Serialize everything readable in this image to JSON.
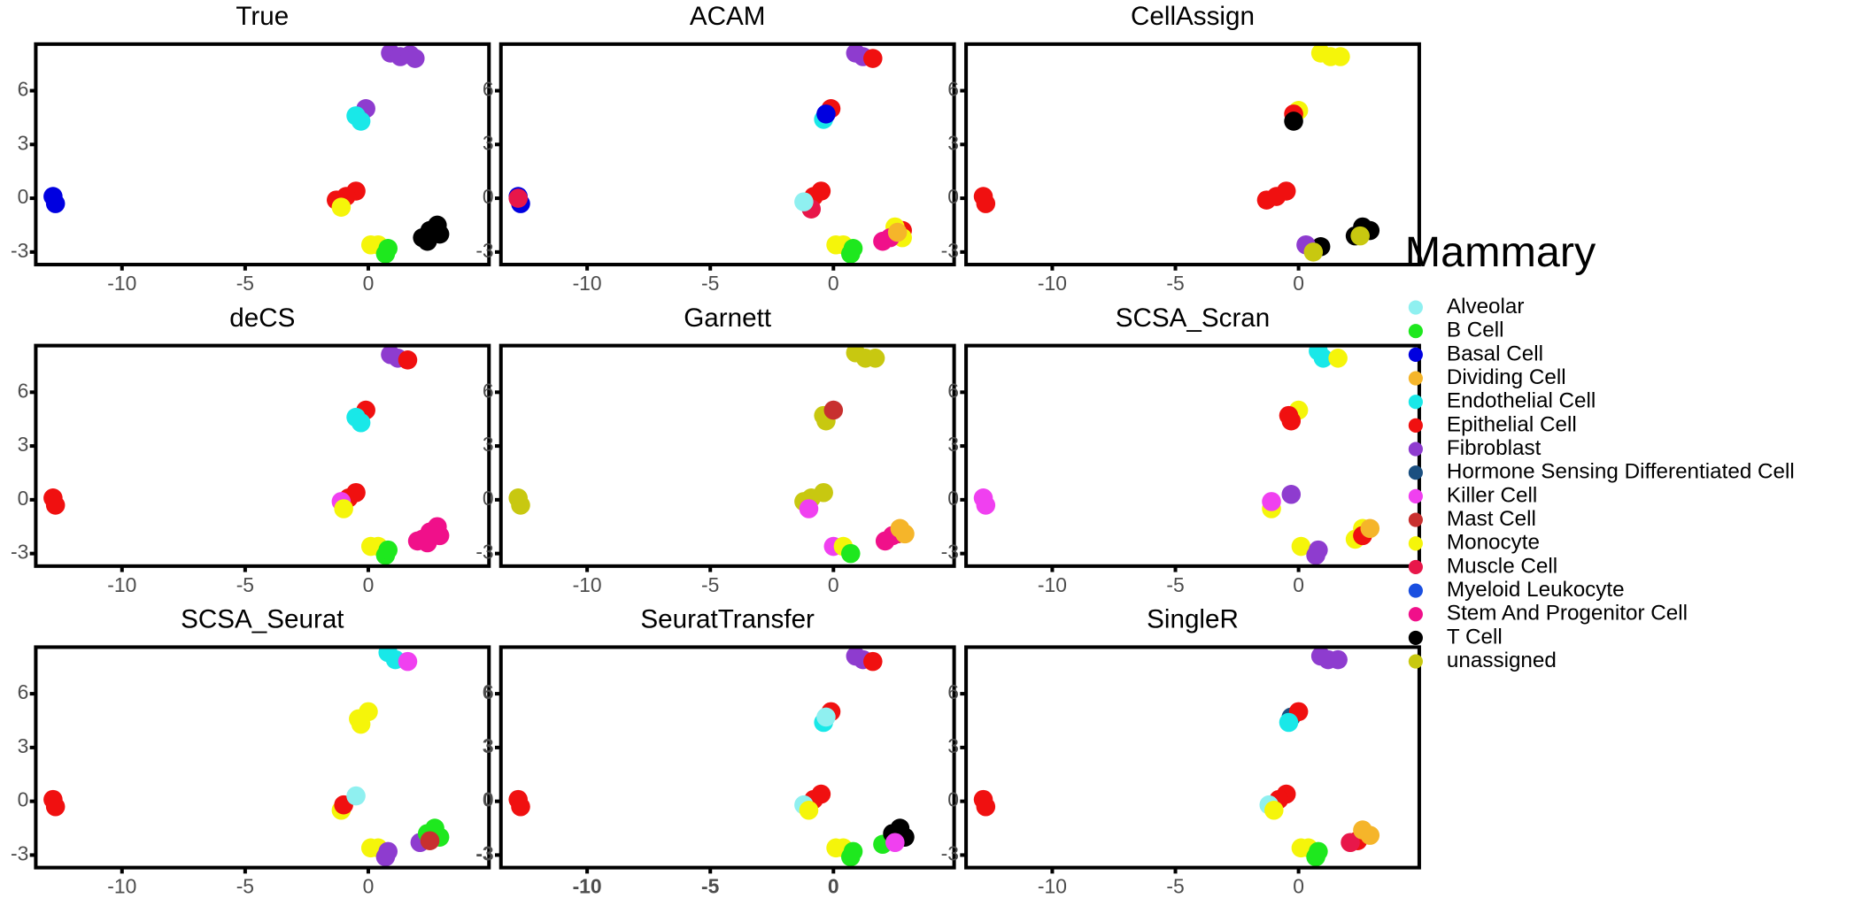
{
  "chart_data": [
    {
      "type": "scatter",
      "title": "True",
      "xlim": [
        -13.5,
        4.9
      ],
      "ylim": [
        -3.7,
        8.6
      ],
      "xticks": [
        -10,
        -5,
        0
      ],
      "yticks": [
        -3,
        0,
        3,
        6
      ],
      "series": [
        {
          "name": "Fibroblast",
          "x": [
            0.9,
            1.3,
            1.7,
            1.9,
            -0.1
          ],
          "y": [
            8.1,
            7.9,
            8.0,
            7.8,
            5.0
          ]
        },
        {
          "name": "Endothelial Cell",
          "x": [
            -0.5,
            -0.3
          ],
          "y": [
            4.6,
            4.3
          ]
        },
        {
          "name": "Basal Cell",
          "x": [
            -12.8,
            -12.7
          ],
          "y": [
            0.1,
            -0.3
          ]
        },
        {
          "name": "Epithelial Cell",
          "x": [
            -0.5,
            -0.9,
            -1.3
          ],
          "y": [
            0.4,
            0.1,
            -0.1
          ]
        },
        {
          "name": "Monocyte",
          "x": [
            -1.1,
            0.1,
            0.4
          ],
          "y": [
            -0.5,
            -2.6,
            -2.6
          ]
        },
        {
          "name": "B Cell",
          "x": [
            0.7,
            0.8
          ],
          "y": [
            -3.1,
            -2.8
          ]
        },
        {
          "name": "T Cell",
          "x": [
            2.2,
            2.5,
            2.8,
            2.9,
            2.4,
            2.7
          ],
          "y": [
            -2.2,
            -1.8,
            -1.5,
            -2.0,
            -2.4,
            -1.9
          ]
        }
      ]
    },
    {
      "type": "scatter",
      "title": "ACAM",
      "xlim": [
        -13.5,
        4.9
      ],
      "ylim": [
        -3.7,
        8.6
      ],
      "xticks": [
        -10,
        -5,
        0
      ],
      "yticks": [
        -3,
        0,
        3,
        6
      ],
      "series": [
        {
          "name": "Fibroblast",
          "x": [
            0.9,
            1.2
          ],
          "y": [
            8.1,
            7.9
          ]
        },
        {
          "name": "Epithelial Cell",
          "x": [
            1.6,
            -0.1,
            -0.5,
            -0.8,
            2.8
          ],
          "y": [
            7.8,
            5.0,
            0.4,
            0.1,
            -1.8
          ]
        },
        {
          "name": "Endothelial Cell",
          "x": [
            -0.4
          ],
          "y": [
            4.4
          ]
        },
        {
          "name": "Basal Cell",
          "x": [
            -0.3,
            -12.8,
            -12.7
          ],
          "y": [
            4.7,
            0.1,
            -0.3
          ]
        },
        {
          "name": "Muscle Cell",
          "x": [
            -12.8,
            -0.9
          ],
          "y": [
            0.0,
            -0.6
          ]
        },
        {
          "name": "Alveolar",
          "x": [
            -1.2
          ],
          "y": [
            -0.2
          ]
        },
        {
          "name": "Monocyte",
          "x": [
            0.1,
            0.4,
            2.5,
            2.8
          ],
          "y": [
            -2.6,
            -2.6,
            -1.6,
            -2.2
          ]
        },
        {
          "name": "B Cell",
          "x": [
            0.7,
            0.8
          ],
          "y": [
            -3.1,
            -2.8
          ]
        },
        {
          "name": "Stem And Progenitor Cell",
          "x": [
            2.0,
            2.3
          ],
          "y": [
            -2.4,
            -2.2
          ]
        },
        {
          "name": "Dividing Cell",
          "x": [
            2.6
          ],
          "y": [
            -1.9
          ]
        }
      ]
    },
    {
      "type": "scatter",
      "title": "CellAssign",
      "xlim": [
        -13.5,
        4.9
      ],
      "ylim": [
        -3.7,
        8.6
      ],
      "xticks": [
        -10,
        -5,
        0
      ],
      "yticks": [
        -3,
        0,
        3,
        6
      ],
      "series": [
        {
          "name": "Monocyte",
          "x": [
            0.9,
            1.3,
            1.7,
            0.0
          ],
          "y": [
            8.1,
            7.9,
            7.9,
            4.9
          ]
        },
        {
          "name": "Epithelial Cell",
          "x": [
            -0.2,
            -12.8,
            -12.7,
            -0.5,
            -0.9,
            -1.3
          ],
          "y": [
            4.7,
            0.1,
            -0.3,
            0.4,
            0.1,
            -0.1
          ]
        },
        {
          "name": "T Cell",
          "x": [
            -0.2,
            0.9,
            2.3,
            2.6,
            2.9
          ],
          "y": [
            4.3,
            -2.7,
            -2.1,
            -1.6,
            -1.8
          ]
        },
        {
          "name": "Fibroblast",
          "x": [
            0.3
          ],
          "y": [
            -2.6
          ]
        },
        {
          "name": "unassigned",
          "x": [
            0.6,
            2.5
          ],
          "y": [
            -3.0,
            -2.1
          ]
        }
      ]
    },
    {
      "type": "scatter",
      "title": "deCS",
      "xlim": [
        -13.5,
        4.9
      ],
      "ylim": [
        -3.7,
        8.6
      ],
      "xticks": [
        -10,
        -5,
        0
      ],
      "yticks": [
        -3,
        0,
        3,
        6
      ],
      "series": [
        {
          "name": "Fibroblast",
          "x": [
            0.9,
            1.2
          ],
          "y": [
            8.1,
            7.9
          ]
        },
        {
          "name": "Epithelial Cell",
          "x": [
            1.6,
            -0.1,
            -12.8,
            -12.7,
            -0.5,
            -0.8
          ],
          "y": [
            7.8,
            5.0,
            0.1,
            -0.3,
            0.4,
            0.1
          ]
        },
        {
          "name": "Endothelial Cell",
          "x": [
            -0.5,
            -0.3
          ],
          "y": [
            4.6,
            4.3
          ]
        },
        {
          "name": "Killer Cell",
          "x": [
            -1.1
          ],
          "y": [
            -0.1
          ]
        },
        {
          "name": "Monocyte",
          "x": [
            -1.0,
            0.1,
            0.4
          ],
          "y": [
            -0.5,
            -2.6,
            -2.6
          ]
        },
        {
          "name": "B Cell",
          "x": [
            0.7,
            0.8
          ],
          "y": [
            -3.1,
            -2.8
          ]
        },
        {
          "name": "Stem And Progenitor Cell",
          "x": [
            2.2,
            2.5,
            2.8,
            2.9,
            2.4,
            2.0
          ],
          "y": [
            -2.2,
            -1.8,
            -1.5,
            -2.0,
            -2.4,
            -2.3
          ]
        }
      ]
    },
    {
      "type": "scatter",
      "title": "Garnett",
      "xlim": [
        -13.5,
        4.9
      ],
      "ylim": [
        -3.7,
        8.6
      ],
      "xticks": [
        -10,
        -5,
        0
      ],
      "yticks": [
        -3,
        0,
        3,
        6
      ],
      "series": [
        {
          "name": "unassigned",
          "x": [
            0.9,
            1.3,
            1.7,
            -0.4,
            -0.3,
            -12.8,
            -12.7,
            -0.4,
            -0.9,
            -1.2
          ],
          "y": [
            8.2,
            7.9,
            7.9,
            4.7,
            4.4,
            0.1,
            -0.3,
            0.4,
            0.1,
            -0.1
          ]
        },
        {
          "name": "Mast Cell",
          "x": [
            0.0,
            2.6
          ],
          "y": [
            5.0,
            -1.9
          ]
        },
        {
          "name": "Killer Cell",
          "x": [
            -1.0,
            0.0
          ],
          "y": [
            -0.5,
            -2.6
          ]
        },
        {
          "name": "Monocyte",
          "x": [
            0.4
          ],
          "y": [
            -2.6
          ]
        },
        {
          "name": "B Cell",
          "x": [
            0.7
          ],
          "y": [
            -3.0
          ]
        },
        {
          "name": "Stem And Progenitor Cell",
          "x": [
            2.1,
            2.4
          ],
          "y": [
            -2.3,
            -2.0
          ]
        },
        {
          "name": "Dividing Cell",
          "x": [
            2.7,
            2.9
          ],
          "y": [
            -1.6,
            -1.9
          ]
        }
      ]
    },
    {
      "type": "scatter",
      "title": "SCSA_Scran",
      "xlim": [
        -13.5,
        4.9
      ],
      "ylim": [
        -3.7,
        8.6
      ],
      "xticks": [
        -10,
        -5,
        0
      ],
      "yticks": [
        -3,
        0,
        3,
        6
      ],
      "series": [
        {
          "name": "Endothelial Cell",
          "x": [
            0.8,
            1.0
          ],
          "y": [
            8.3,
            7.9
          ]
        },
        {
          "name": "Monocyte",
          "x": [
            1.6,
            0.0,
            -1.1,
            0.1,
            2.3,
            2.6
          ],
          "y": [
            7.9,
            5.0,
            -0.5,
            -2.6,
            -2.2,
            -1.6
          ]
        },
        {
          "name": "Epithelial Cell",
          "x": [
            -0.4,
            -0.3,
            2.6
          ],
          "y": [
            4.7,
            4.4,
            -2.0
          ]
        },
        {
          "name": "Killer Cell",
          "x": [
            -12.8,
            -12.7,
            -1.1
          ],
          "y": [
            0.1,
            -0.3,
            -0.1
          ]
        },
        {
          "name": "Fibroblast",
          "x": [
            -0.3,
            0.7,
            0.8
          ],
          "y": [
            0.3,
            -3.1,
            -2.8
          ]
        },
        {
          "name": "Dividing Cell",
          "x": [
            2.9
          ],
          "y": [
            -1.6
          ]
        }
      ]
    },
    {
      "type": "scatter",
      "title": "SCSA_Seurat",
      "xlim": [
        -13.5,
        4.9
      ],
      "ylim": [
        -3.7,
        8.6
      ],
      "xticks": [
        -10,
        -5,
        0
      ],
      "yticks": [
        -3,
        0,
        3,
        6
      ],
      "series": [
        {
          "name": "Endothelial Cell",
          "x": [
            0.8,
            1.1
          ],
          "y": [
            8.3,
            7.9
          ]
        },
        {
          "name": "Killer Cell",
          "x": [
            1.6
          ],
          "y": [
            7.8
          ]
        },
        {
          "name": "Monocyte",
          "x": [
            0.0,
            -0.4,
            -0.3,
            -1.1,
            0.1,
            0.4
          ],
          "y": [
            5.0,
            4.6,
            4.3,
            -0.5,
            -2.6,
            -2.6
          ]
        },
        {
          "name": "Epithelial Cell",
          "x": [
            -12.8,
            -12.7,
            -1.0
          ],
          "y": [
            0.1,
            -0.3,
            -0.2
          ]
        },
        {
          "name": "Alveolar",
          "x": [
            -0.5
          ],
          "y": [
            0.3
          ]
        },
        {
          "name": "Fibroblast",
          "x": [
            0.7,
            0.8,
            2.1
          ],
          "y": [
            -3.1,
            -2.8,
            -2.3
          ]
        },
        {
          "name": "B Cell",
          "x": [
            2.4,
            2.7,
            2.9
          ],
          "y": [
            -1.8,
            -1.5,
            -2.0
          ]
        },
        {
          "name": "Mast Cell",
          "x": [
            2.5
          ],
          "y": [
            -2.2
          ]
        }
      ]
    },
    {
      "type": "scatter",
      "title": "SeuratTransfer",
      "xlim": [
        -13.5,
        4.9
      ],
      "ylim": [
        -3.7,
        8.6
      ],
      "xticks": [
        -10,
        -5,
        0
      ],
      "yticks": [
        -3,
        0,
        3,
        6
      ],
      "bold_ticks": true,
      "series": [
        {
          "name": "Fibroblast",
          "x": [
            0.9,
            1.2
          ],
          "y": [
            8.1,
            7.9
          ]
        },
        {
          "name": "Epithelial Cell",
          "x": [
            1.6,
            -0.1,
            -12.8,
            -12.7,
            -0.5,
            -0.8
          ],
          "y": [
            7.8,
            5.0,
            0.1,
            -0.3,
            0.4,
            0.1
          ]
        },
        {
          "name": "Endothelial Cell",
          "x": [
            -0.4
          ],
          "y": [
            4.4
          ]
        },
        {
          "name": "Alveolar",
          "x": [
            -0.3,
            -1.2
          ],
          "y": [
            4.7,
            -0.2
          ]
        },
        {
          "name": "Monocyte",
          "x": [
            -1.0,
            0.1,
            0.4
          ],
          "y": [
            -0.5,
            -2.6,
            -2.6
          ]
        },
        {
          "name": "B Cell",
          "x": [
            0.7,
            0.8,
            2.0
          ],
          "y": [
            -3.1,
            -2.8,
            -2.4
          ]
        },
        {
          "name": "T Cell",
          "x": [
            2.4,
            2.7,
            2.9,
            2.6
          ],
          "y": [
            -1.8,
            -1.5,
            -2.0,
            -1.7
          ]
        },
        {
          "name": "Killer Cell",
          "x": [
            2.5
          ],
          "y": [
            -2.3
          ]
        }
      ]
    },
    {
      "type": "scatter",
      "title": "SingleR",
      "xlim": [
        -13.5,
        4.9
      ],
      "ylim": [
        -3.7,
        8.6
      ],
      "xticks": [
        -10,
        -5,
        0
      ],
      "yticks": [
        -3,
        0,
        3,
        6
      ],
      "series": [
        {
          "name": "Fibroblast",
          "x": [
            0.9,
            1.2,
            1.6
          ],
          "y": [
            8.1,
            7.9,
            7.9
          ]
        },
        {
          "name": "Hormone Sensing Differentiated Cell",
          "x": [
            -0.3
          ],
          "y": [
            4.7
          ]
        },
        {
          "name": "Epithelial Cell",
          "x": [
            0.0,
            -12.8,
            -12.7,
            -0.5,
            -0.8,
            2.4
          ],
          "y": [
            5.0,
            0.1,
            -0.3,
            0.4,
            0.1,
            -2.2
          ]
        },
        {
          "name": "Endothelial Cell",
          "x": [
            -0.4
          ],
          "y": [
            4.4
          ]
        },
        {
          "name": "Alveolar",
          "x": [
            -1.2
          ],
          "y": [
            -0.2
          ]
        },
        {
          "name": "Monocyte",
          "x": [
            -1.0,
            0.1,
            0.4
          ],
          "y": [
            -0.5,
            -2.6,
            -2.6
          ]
        },
        {
          "name": "B Cell",
          "x": [
            0.7,
            0.8
          ],
          "y": [
            -3.1,
            -2.8
          ]
        },
        {
          "name": "Muscle Cell",
          "x": [
            2.1
          ],
          "y": [
            -2.3
          ]
        },
        {
          "name": "Dividing Cell",
          "x": [
            2.6,
            2.9
          ],
          "y": [
            -1.6,
            -1.9
          ]
        }
      ]
    }
  ],
  "legend": {
    "title": "Mammary",
    "items": [
      {
        "name": "Alveolar",
        "color": "#8ff0f0"
      },
      {
        "name": "B Cell",
        "color": "#1ee81e"
      },
      {
        "name": "Basal Cell",
        "color": "#0000e0"
      },
      {
        "name": "Dividing Cell",
        "color": "#f5b52a"
      },
      {
        "name": "Endothelial Cell",
        "color": "#19e8e8"
      },
      {
        "name": "Epithelial Cell",
        "color": "#f01010"
      },
      {
        "name": "Fibroblast",
        "color": "#8e3ccf"
      },
      {
        "name": "Hormone Sensing Differentiated Cell",
        "color": "#1a4f80"
      },
      {
        "name": "Killer Cell",
        "color": "#f040f0"
      },
      {
        "name": "Mast Cell",
        "color": "#c8302f"
      },
      {
        "name": "Monocyte",
        "color": "#f5f50a"
      },
      {
        "name": "Muscle Cell",
        "color": "#e8174a"
      },
      {
        "name": "Myeloid Leukocyte",
        "color": "#1a4fe0"
      },
      {
        "name": "Stem And Progenitor Cell",
        "color": "#f0108a"
      },
      {
        "name": "T Cell",
        "color": "#000000"
      },
      {
        "name": "unassigned",
        "color": "#c8c810"
      }
    ]
  }
}
